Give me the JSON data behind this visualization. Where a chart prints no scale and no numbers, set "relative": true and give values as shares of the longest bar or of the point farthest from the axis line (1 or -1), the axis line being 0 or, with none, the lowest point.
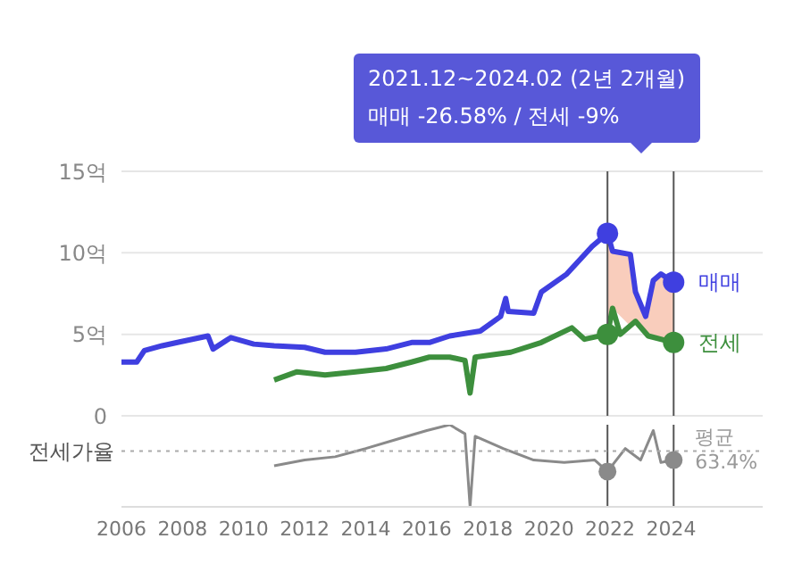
{
  "chart_data": [
    {
      "type": "line",
      "annotations": [
        "2021.12~2024.02 (2년 2개월)",
        "매매 -26.58%  /  전세 -9%"
      ],
      "xlim": [
        "2006-01",
        "2027-01"
      ],
      "ylim": [
        0,
        15
      ],
      "yticks": [
        0,
        {
          "value": 5,
          "label": "5억"
        },
        {
          "value": 10,
          "label": "10억"
        },
        {
          "value": 15,
          "label": "15억"
        }
      ],
      "grid": "y",
      "tick_labels": "y",
      "legend": "right",
      "series": [
        {
          "name": "매매",
          "color": "#3f3fe0",
          "x": [
            "2006-01",
            "2006-07",
            "2006-10",
            "2007-05",
            "2007-11",
            "2008-11",
            "2009-01",
            "2009-08",
            "2010-05",
            "2011-01",
            "2012-01",
            "2012-09",
            "2013-09",
            "2014-09",
            "2015-07",
            "2016-02",
            "2016-10",
            "2017-10",
            "2018-06",
            "2018-08",
            "2018-09",
            "2019-07",
            "2019-10",
            "2020-08",
            "2021-06",
            "2021-12",
            "2022-02",
            "2022-09",
            "2022-11",
            "2023-03",
            "2023-06",
            "2023-09",
            "2024-02"
          ],
          "values": [
            3.3,
            3.3,
            4.0,
            4.3,
            4.5,
            4.9,
            4.1,
            4.8,
            4.4,
            4.3,
            4.2,
            3.9,
            3.9,
            4.1,
            4.5,
            4.5,
            4.9,
            5.2,
            6.1,
            7.2,
            6.4,
            6.3,
            7.6,
            8.7,
            10.4,
            11.2,
            10.1,
            9.9,
            7.6,
            6.1,
            8.3,
            8.7,
            8.2
          ],
          "lower": [
            null,
            null,
            null,
            null,
            null,
            null,
            null,
            null,
            null,
            null,
            null,
            null,
            null,
            null,
            null,
            null,
            null,
            null,
            null,
            null,
            null,
            null,
            null,
            null,
            null,
            5.0,
            6.6,
            5.5,
            5.8,
            5.1,
            4.8,
            4.7,
            4.5
          ],
          "upper": [
            null,
            null,
            null,
            null,
            null,
            null,
            null,
            null,
            null,
            null,
            null,
            null,
            null,
            null,
            null,
            null,
            null,
            null,
            null,
            null,
            null,
            null,
            null,
            null,
            null,
            11.2,
            10.1,
            9.9,
            7.6,
            6.1,
            8.3,
            8.7,
            8.2
          ]
        },
        {
          "name": "전세",
          "color": "#3d8f3d",
          "x": [
            "2011-01",
            "2011-10",
            "2012-09",
            "2013-09",
            "2014-09",
            "2015-07",
            "2016-02",
            "2016-10",
            "2017-04",
            "2017-06",
            "2017-08",
            "2018-10",
            "2019-10",
            "2020-10",
            "2021-03",
            "2021-12",
            "2022-02",
            "2022-05",
            "2022-11",
            "2023-04",
            "2024-02"
          ],
          "values": [
            2.2,
            2.7,
            2.5,
            2.7,
            2.9,
            3.3,
            3.6,
            3.6,
            3.4,
            1.4,
            3.6,
            3.9,
            4.5,
            5.4,
            4.7,
            5.0,
            6.6,
            5.0,
            5.8,
            4.9,
            4.5
          ]
        },
        {
          "type": "scatter",
          "color": "#3f3fe0",
          "x": [
            "2021-12",
            "2024-02"
          ],
          "values": [
            11.2,
            8.2
          ]
        },
        {
          "type": "scatter",
          "color": "#3d8f3d",
          "x": [
            "2021-12",
            "2024-02"
          ],
          "values": [
            5.0,
            4.5
          ]
        }
      ],
      "ref_lines": [
        {
          "axis": "x",
          "value": "2021-12",
          "color": "#555555"
        },
        {
          "axis": "x",
          "value": "2024-02",
          "color": "#555555"
        }
      ]
    },
    {
      "type": "line",
      "ylabel": "전세가율",
      "relative": true,
      "tick_labels": "x",
      "xlim": [
        "2006-01",
        "2027-01"
      ],
      "xticks": [
        "2006",
        "2008",
        "2010",
        "2012",
        "2014",
        "2016",
        "2018",
        "2020",
        "2022",
        "2024"
      ],
      "series": [
        {
          "color": "#8a8a8a",
          "x": [
            "2011-01",
            "2012-01",
            "2013-01",
            "2014-01",
            "2015-01",
            "2016-01",
            "2016-10",
            "2017-04",
            "2017-06",
            "2017-08",
            "2018-07",
            "2019-07",
            "2020-07",
            "2021-07",
            "2021-12",
            "2022-07",
            "2023-01",
            "2023-06",
            "2023-09",
            "2024-02"
          ],
          "values": [
            0.5,
            0.57,
            0.61,
            0.71,
            0.82,
            0.93,
            1,
            0.89,
            0,
            0.86,
            0.71,
            0.57,
            0.54,
            0.57,
            0.43,
            0.71,
            0.57,
            0.93,
            0.54,
            0.57
          ]
        },
        {
          "type": "scatter",
          "color": "#8a8a8a",
          "x": [
            "2021-12",
            "2024-02"
          ],
          "values": [
            0.43,
            0.57
          ]
        }
      ],
      "ref_lines": [
        {
          "axis": "x",
          "value": "2021-12",
          "color": "#555555"
        },
        {
          "axis": "x",
          "value": "2024-02",
          "color": "#555555"
        },
        {
          "axis": "y",
          "value": 0.68,
          "label": "평균\n63.4%",
          "color": "#aaaaaa",
          "line_style": "dotted"
        }
      ]
    }
  ]
}
